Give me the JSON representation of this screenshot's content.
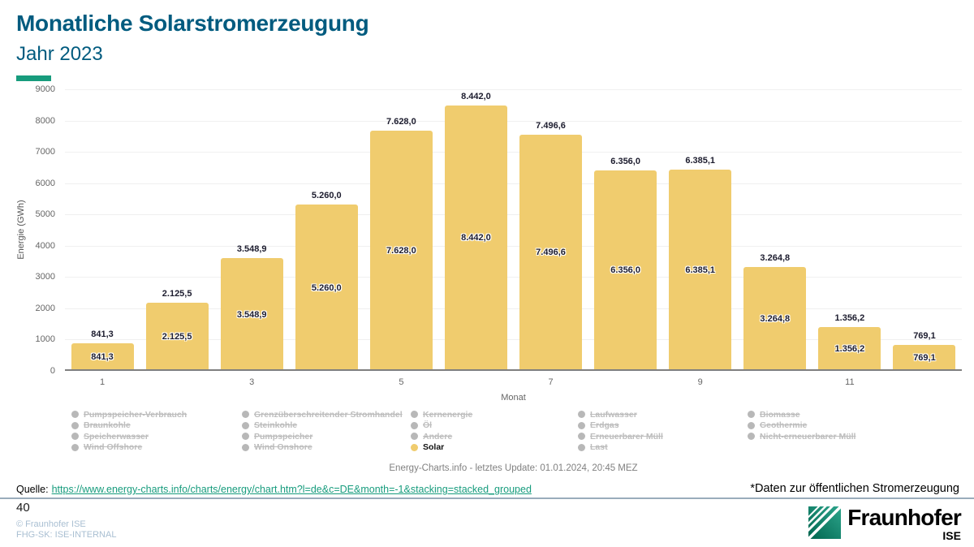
{
  "header": {
    "title": "Monatliche Solarstromerzeugung",
    "subtitle": "Jahr 2023"
  },
  "colors": {
    "title_blue": "#005B7F",
    "accent_green": "#179C7D",
    "solar": "#F0CC6E",
    "legend_inactive": "#B8B8B8",
    "legend_text": "#BDBDBD",
    "footer_blue": "#A9BFD2",
    "link_green": "#179C7D",
    "grid": "#F0F0F0",
    "axis_text": "#666666"
  },
  "chart_data": {
    "type": "bar",
    "title": "Monatliche Solarstromerzeugung Jahr 2023",
    "xlabel": "Monat",
    "ylabel": "Energie (GWh)",
    "ylim": [
      0,
      9000
    ],
    "ytick_step": 1000,
    "x": [
      1,
      2,
      3,
      4,
      5,
      6,
      7,
      8,
      9,
      10,
      11,
      12
    ],
    "xticks": [
      1,
      3,
      5,
      7,
      9,
      11
    ],
    "grid": true,
    "legend_position": "bottom",
    "series": [
      {
        "name": "Solar",
        "color": "#F0CC6E",
        "values": [
          841.3,
          2125.5,
          3548.9,
          5260.0,
          7628.0,
          8442.0,
          7496.6,
          6356.0,
          6385.1,
          3264.8,
          1356.2,
          769.1
        ],
        "labels": [
          "841,3",
          "2.125,5",
          "3.548,9",
          "5.260,0",
          "7.628,0",
          "8.442,0",
          "7.496,6",
          "6.356,0",
          "6.385,1",
          "3.264,8",
          "1.356,2",
          "769,1"
        ]
      }
    ],
    "caption": "Energy-Charts.info - letztes Update: 01.01.2024, 20:45 MEZ"
  },
  "legend": {
    "columns": [
      [
        {
          "label": "Pumpspeicher-Verbrauch",
          "active": false
        },
        {
          "label": "Braunkohle",
          "active": false
        },
        {
          "label": "Speicherwasser",
          "active": false
        },
        {
          "label": "Wind Offshore",
          "active": false
        }
      ],
      [
        {
          "label": "Grenzüberschreitender Stromhandel",
          "active": false
        },
        {
          "label": "Steinkohle",
          "active": false
        },
        {
          "label": "Pumpspeicher",
          "active": false
        },
        {
          "label": "Wind Onshore",
          "active": false
        }
      ],
      [
        {
          "label": "Kernenergie",
          "active": false
        },
        {
          "label": "Öl",
          "active": false
        },
        {
          "label": "Andere",
          "active": false
        },
        {
          "label": "Solar",
          "active": true
        }
      ],
      [
        {
          "label": "Laufwasser",
          "active": false
        },
        {
          "label": "Erdgas",
          "active": false
        },
        {
          "label": "Erneuerbarer Müll",
          "active": false
        },
        {
          "label": "Last",
          "active": false
        }
      ],
      [
        {
          "label": "Biomasse",
          "active": false
        },
        {
          "label": "Geothermie",
          "active": false
        },
        {
          "label": "Nicht-erneuerbarer Müll",
          "active": false
        }
      ]
    ]
  },
  "footer": {
    "source_label": "Quelle:",
    "source_url": "https://www.energy-charts.info/charts/energy/chart.htm?l=de&c=DE&month=-1&stacking=stacked_grouped",
    "note": "*Daten zur öffentlichen Stromerzeugung",
    "page_number": "40",
    "copyright": "© Fraunhofer ISE",
    "classification": "FHG-SK: ISE-INTERNAL",
    "logo_wordmark": "Fraunhofer",
    "logo_institute": "ISE"
  }
}
